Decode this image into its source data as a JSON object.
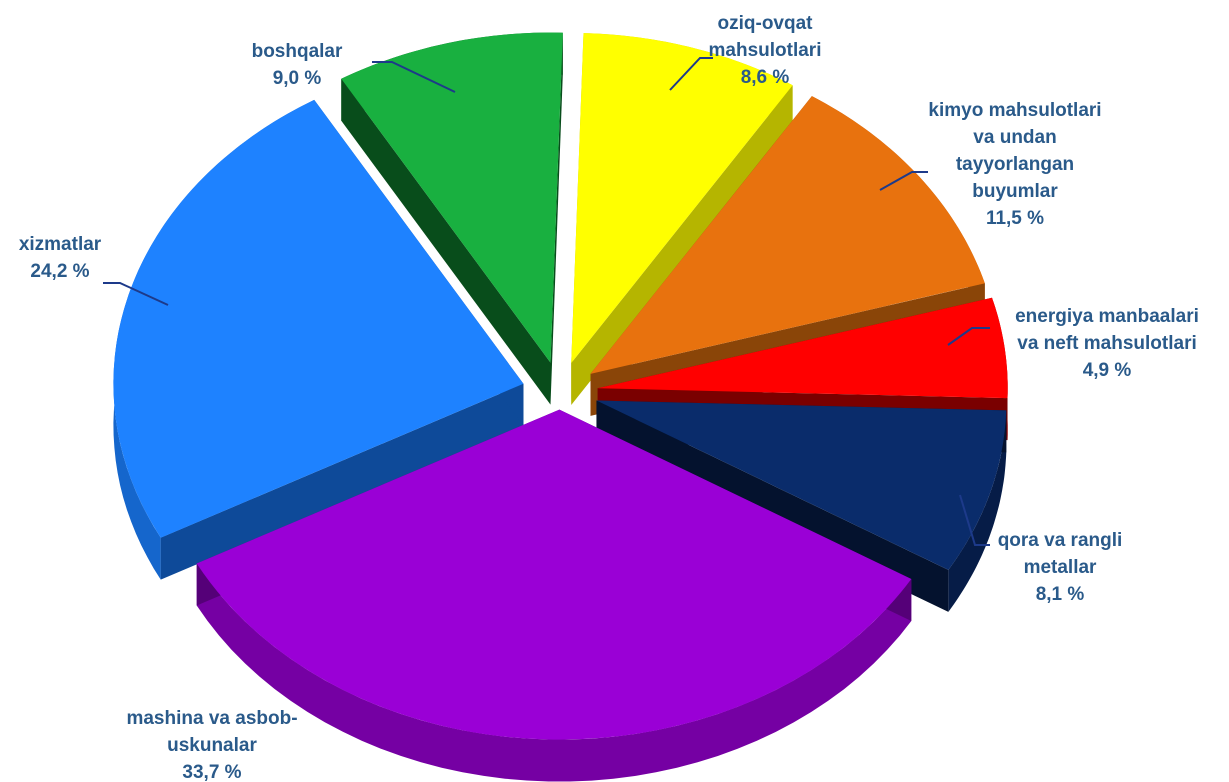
{
  "chart_data": {
    "type": "pie",
    "title": "",
    "slices": [
      {
        "label": "oziq-ovqat mahsulotlari",
        "label_lines": [
          "oziq-ovqat",
          "mahsulotlari"
        ],
        "value_label": "8,6 %",
        "value": 8.6,
        "color": "#ffff00",
        "side": "#d9d900",
        "dark": "#b5b500",
        "icon": "pie-slice"
      },
      {
        "label": "kimyo mahsulotlari va undan tayyorlangan buyumlar",
        "label_lines": [
          "kimyo mahsulotlari",
          "va undan",
          "tayyorlangan",
          "buyumlar"
        ],
        "value_label": "11,5 %",
        "value": 11.5,
        "color": "#e8720e",
        "side": "#b65a0b",
        "dark": "#8a4508",
        "icon": "pie-slice"
      },
      {
        "label": "energiya manbaalari va neft mahsulotlari",
        "label_lines": [
          "energiya manbaalari",
          "va neft mahsulotlari"
        ],
        "value_label": "4,9 %",
        "value": 4.9,
        "color": "#ff0000",
        "side": "#b00000",
        "dark": "#7a0000",
        "icon": "pie-slice"
      },
      {
        "label": "qora va rangli metallar",
        "label_lines": [
          "qora va rangli",
          "metallar"
        ],
        "value_label": "8,1 %",
        "value": 8.1,
        "color": "#0a2c6b",
        "side": "#061c47",
        "dark": "#04122e",
        "icon": "pie-slice"
      },
      {
        "label": "mashina va asbob-uskunalar",
        "label_lines": [
          "mashina va asbob-",
          "uskunalar"
        ],
        "value_label": "33,7 %",
        "value": 33.7,
        "color": "#9a00d6",
        "side": "#7500a3",
        "dark": "#550078",
        "icon": "pie-slice"
      },
      {
        "label": "xizmatlar",
        "label_lines": [
          "xizmatlar"
        ],
        "value_label": "24,2 %",
        "value": 24.2,
        "color": "#1e82ff",
        "side": "#1566cc",
        "dark": "#0e4a99",
        "icon": "pie-slice"
      },
      {
        "label": "boshqalar",
        "label_lines": [
          "boshqalar"
        ],
        "value_label": "9,0 %",
        "value": 9.0,
        "color": "#19b040",
        "side": "#0f7a2b",
        "dark": "#084d1b",
        "icon": "pie-slice"
      }
    ],
    "exploded": true,
    "three_d": true,
    "legend": "none",
    "label_color": "#2a5a8a",
    "leader_color": "#1d3a8a"
  }
}
